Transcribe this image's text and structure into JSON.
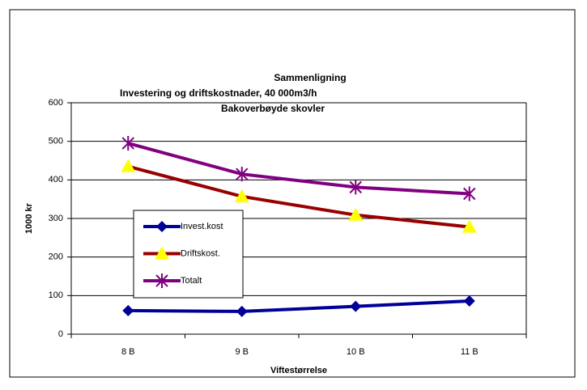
{
  "chart_data": {
    "type": "line",
    "title": [
      "Sammenligning",
      "Investering og driftskostnader, 40 000m3/h",
      "Bakoverbøyde skovler"
    ],
    "x_label": "Viftestørrelse",
    "y_label": "1000 kr",
    "categories": [
      "8 B",
      "9 B",
      "10 B",
      "11 B"
    ],
    "series": [
      {
        "name": "Invest.kost",
        "color": "#000099",
        "marker": "diamond",
        "marker_color": "#000099",
        "values": [
          61,
          59,
          72,
          86
        ]
      },
      {
        "name": "Driftskost.",
        "color": "#990000",
        "marker": "triangle",
        "marker_color": "#ffff00",
        "values": [
          435,
          357,
          309,
          278
        ]
      },
      {
        "name": "Totalt",
        "color": "#800080",
        "marker": "star",
        "marker_color": "#800080",
        "values": [
          495,
          415,
          381,
          364
        ]
      }
    ],
    "ylim": [
      0,
      600
    ],
    "yticks": [
      0,
      100,
      200,
      300,
      400,
      500,
      600
    ],
    "grid": true,
    "legend": "left"
  }
}
